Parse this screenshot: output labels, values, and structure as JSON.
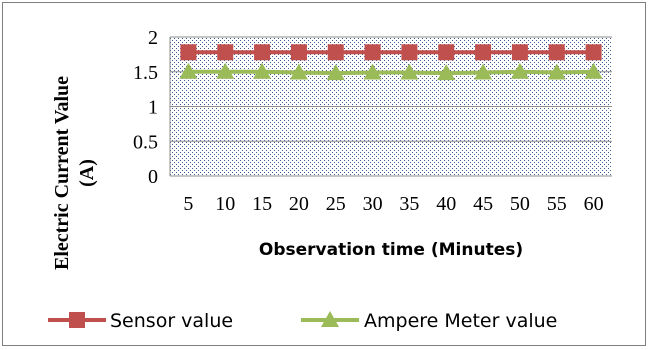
{
  "chart_data": {
    "type": "line",
    "title": "",
    "xlabel": "Observation time (Minutes)",
    "ylabel_line1": "Electric Current Value",
    "ylabel_line2": "(A)",
    "categories": [
      "5",
      "10",
      "15",
      "20",
      "25",
      "30",
      "35",
      "40",
      "45",
      "50",
      "55",
      "60"
    ],
    "ylim": [
      0,
      2
    ],
    "yticks": [
      "0",
      "0.5",
      "1",
      "1.5",
      "2"
    ],
    "ytick_values": [
      0,
      0.5,
      1,
      1.5,
      2
    ],
    "grid": true,
    "legend_position": "bottom",
    "series": [
      {
        "name": "Sensor value",
        "values": [
          1.78,
          1.78,
          1.78,
          1.78,
          1.78,
          1.78,
          1.78,
          1.78,
          1.78,
          1.78,
          1.78,
          1.78
        ],
        "color": "#c0504d",
        "marker": "square"
      },
      {
        "name": "Ampere Meter value",
        "values": [
          1.5,
          1.5,
          1.5,
          1.49,
          1.48,
          1.49,
          1.49,
          1.48,
          1.49,
          1.5,
          1.49,
          1.5
        ],
        "color": "#9bbb59",
        "marker": "triangle"
      }
    ]
  }
}
